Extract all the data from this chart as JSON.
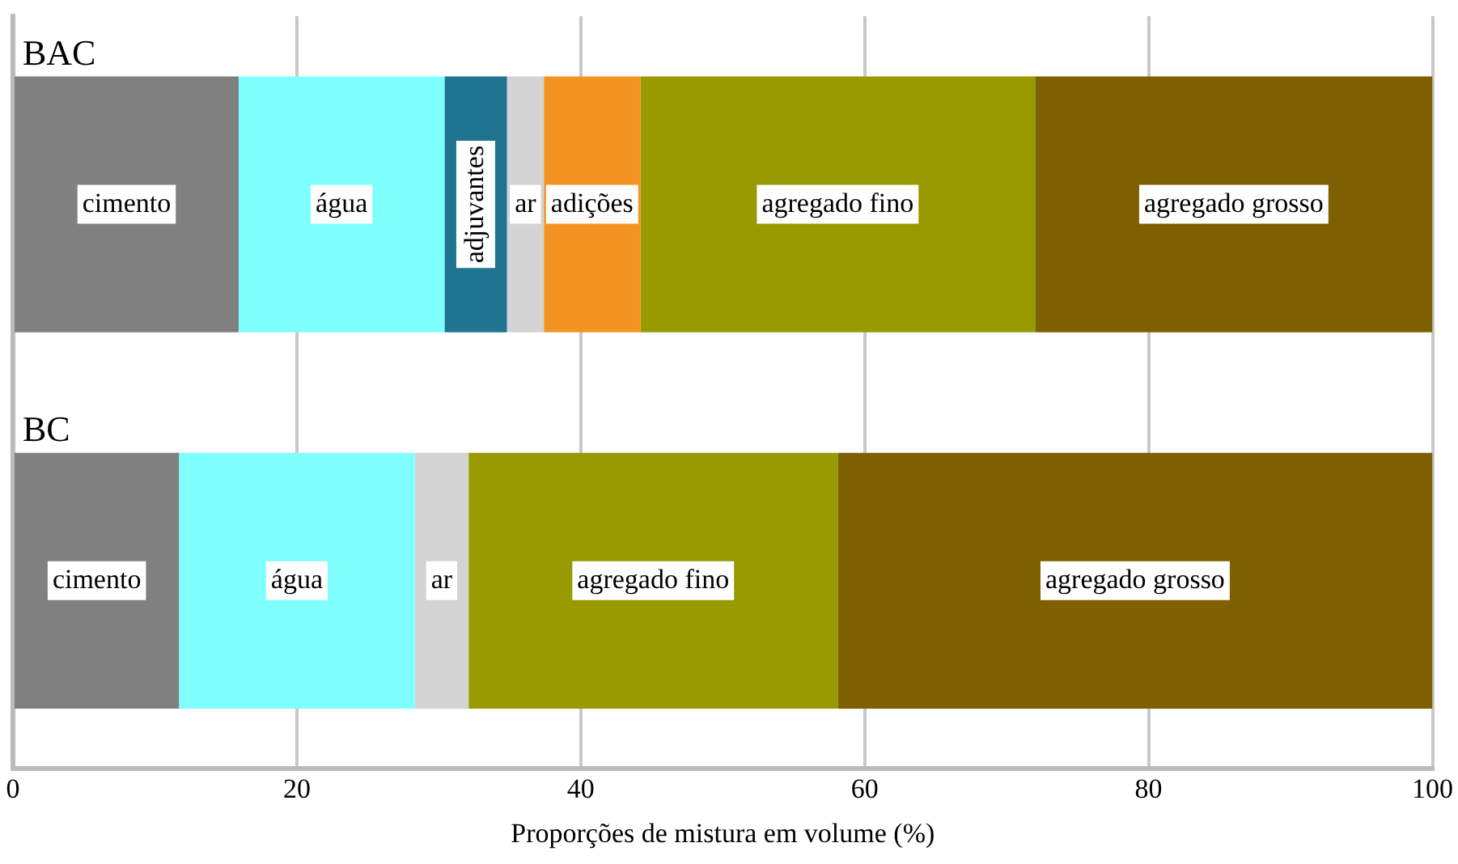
{
  "chart_data": {
    "type": "bar",
    "orientation": "horizontal",
    "stacked": true,
    "categories": [
      "BAC",
      "BC"
    ],
    "series": [
      {
        "name": "cimento",
        "color": "#808080",
        "values": [
          15.9,
          11.7
        ]
      },
      {
        "name": "água",
        "color": "#80ffff",
        "values": [
          14.5,
          16.6
        ]
      },
      {
        "name": "adjuvantes",
        "color": "#1f7590",
        "values": [
          4.4,
          null
        ]
      },
      {
        "name": "ar",
        "color": "#d3d3d3",
        "values": [
          2.6,
          3.8
        ]
      },
      {
        "name": "adições",
        "color": "#f39422",
        "values": [
          6.8,
          null
        ]
      },
      {
        "name": "agregado fino",
        "color": "#999900",
        "values": [
          27.8,
          26.0
        ]
      },
      {
        "name": "agregado grosso",
        "color": "#7f6000",
        "values": [
          28.0,
          41.9
        ]
      }
    ],
    "xlabel": "Proporções de mistura em volume (%)",
    "xlim": [
      0,
      100
    ],
    "xticks": [
      0,
      20,
      40,
      60,
      80,
      100
    ],
    "grid": "x",
    "legend": false
  }
}
